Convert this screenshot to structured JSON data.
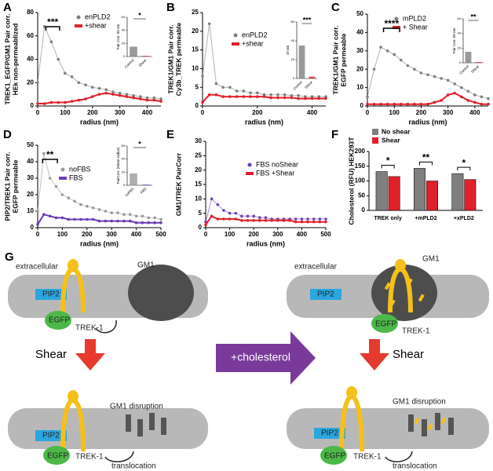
{
  "chart_data": [
    {
      "panel": "A",
      "type": "line",
      "ylabel": [
        "TREK1_EGFP/GM1  Pair corr.",
        "HEk  non-permeablized"
      ],
      "xlabel": "radius (nm)",
      "xlim": [
        0,
        450
      ],
      "xticks": [
        0,
        100,
        200,
        300,
        400
      ],
      "ylim": [
        0,
        80
      ],
      "yticks": [
        0,
        20,
        40,
        60,
        80
      ],
      "legend": "upper right",
      "annotation": "***",
      "x": [
        0,
        25,
        50,
        75,
        100,
        125,
        150,
        175,
        200,
        225,
        250,
        275,
        300,
        325,
        350,
        375,
        400,
        425,
        450
      ],
      "series": [
        {
          "name": "enPLD2",
          "color": "#7f7f7f",
          "values": [
            20,
            68,
            55,
            40,
            28,
            25,
            20,
            18,
            16,
            15,
            14,
            12,
            11,
            10,
            9,
            8,
            7,
            7,
            6
          ]
        },
        {
          "name": "+shear",
          "color": "#e0202a",
          "values": [
            2,
            2,
            3,
            3,
            3,
            4,
            5,
            6,
            8,
            10,
            11,
            10,
            9,
            8,
            7,
            6,
            5,
            5,
            4
          ]
        }
      ],
      "inset": {
        "type": "bar",
        "ylabel": "Pair Corr. 50 nm",
        "categories": [
          "Control",
          "Shear"
        ],
        "values": [
          15,
          1
        ],
        "colors": [
          "#7f7f7f",
          "#e0202a"
        ],
        "ylim": [
          0,
          60
        ],
        "yticks": [
          0,
          20,
          40,
          60
        ],
        "annotation": "*"
      }
    },
    {
      "panel": "B",
      "type": "line",
      "ylabel": [
        "TREK1/GM1  Pair corr.",
        "Cy3b_TREK permeable"
      ],
      "xlabel": "radius (nm)",
      "xlim": [
        0,
        450
      ],
      "xticks": [
        0,
        200,
        400
      ],
      "ylim": [
        0,
        25
      ],
      "yticks": [
        0,
        5,
        10,
        15,
        20,
        25
      ],
      "legend": "upper right",
      "x": [
        0,
        25,
        50,
        75,
        100,
        125,
        150,
        175,
        200,
        225,
        250,
        275,
        300,
        325,
        350,
        375,
        400,
        425,
        450
      ],
      "series": [
        {
          "name": "enPLD2",
          "color": "#7f7f7f",
          "values": [
            8,
            22,
            6,
            5,
            5,
            4,
            4,
            3.5,
            3.5,
            3,
            3,
            3,
            3,
            2.8,
            2.8,
            2.5,
            2.5,
            2.5,
            2.5
          ]
        },
        {
          "name": "+shear",
          "color": "#e0202a",
          "values": [
            1,
            3,
            3,
            2.5,
            2.5,
            2.5,
            2.5,
            2.5,
            2.5,
            2.5,
            2.2,
            2.2,
            2.2,
            2.2,
            2,
            2,
            2,
            2,
            2
          ]
        }
      ],
      "inset": {
        "type": "bar",
        "ylabel": "10 nm",
        "categories": [
          "Control",
          "Shear"
        ],
        "values": [
          35,
          2
        ],
        "colors": [
          "#7f7f7f",
          "#e0202a"
        ],
        "ylim": [
          0,
          60
        ],
        "yticks": [
          0,
          20,
          40,
          60
        ],
        "annotation": "***"
      }
    },
    {
      "panel": "C",
      "type": "line",
      "ylabel": [
        "TREK1/GM1 Pair corr.",
        "EGFP permeable"
      ],
      "xlabel": "radius (nm)",
      "xlim": [
        0,
        450
      ],
      "xticks": [
        0,
        100,
        200,
        300,
        400
      ],
      "ylim": [
        0,
        50
      ],
      "yticks": [
        0,
        10,
        20,
        30,
        40,
        50
      ],
      "legend": "upper right",
      "annotation": "****",
      "x": [
        0,
        25,
        50,
        75,
        100,
        125,
        150,
        175,
        200,
        225,
        250,
        275,
        300,
        325,
        350,
        375,
        400,
        425,
        450
      ],
      "series": [
        {
          "name": "mPLD2",
          "color": "#7f7f7f",
          "values": [
            5,
            20,
            32,
            30,
            28,
            25,
            22,
            20,
            18,
            17,
            16,
            15,
            14,
            12,
            10,
            8,
            6,
            5,
            4
          ]
        },
        {
          "name": "+ Shear",
          "color": "#e0202a",
          "values": [
            1,
            1,
            1,
            1,
            1,
            1,
            1,
            1,
            1,
            1,
            2,
            3,
            6,
            7,
            5,
            3,
            2,
            1,
            1
          ]
        }
      ],
      "inset": {
        "type": "bar",
        "ylabel": "Pair Corr. 50 nm",
        "categories": [
          "Control",
          "Shear"
        ],
        "values": [
          15,
          1
        ],
        "colors": [
          "#7f7f7f",
          "#e0202a"
        ],
        "ylim": [
          0,
          60
        ],
        "yticks": [
          0,
          20,
          40,
          60
        ],
        "annotation": "**"
      }
    },
    {
      "panel": "D",
      "type": "line",
      "ylabel": [
        "PIP2/TREK1 Pair corr.",
        "EGFP permeable"
      ],
      "xlabel": "radius (nm)",
      "xlim": [
        0,
        500
      ],
      "xticks": [
        0,
        100,
        200,
        300,
        400,
        500
      ],
      "ylim": [
        0,
        50
      ],
      "yticks": [
        0,
        10,
        20,
        30,
        40,
        50
      ],
      "legend": "center",
      "annotation": "**",
      "x": [
        0,
        25,
        50,
        75,
        100,
        125,
        150,
        175,
        200,
        225,
        250,
        275,
        300,
        325,
        350,
        375,
        400,
        425,
        450,
        475,
        500
      ],
      "series": [
        {
          "name": "noFBS",
          "color": "#9a9a9a",
          "values": [
            10,
            45,
            30,
            25,
            20,
            18,
            16,
            14,
            13,
            12,
            11,
            10,
            9,
            9,
            8,
            8,
            7,
            7,
            6,
            6,
            5
          ]
        },
        {
          "name": "FBS",
          "color": "#6a3db5",
          "values": [
            2,
            8,
            7,
            6,
            6,
            5,
            5,
            5,
            5,
            5,
            4,
            4,
            4,
            4,
            4,
            4,
            3,
            3,
            3,
            3,
            3
          ]
        }
      ],
      "inset": {
        "type": "bar",
        "ylabel": "PairCorr. (50nm radius)",
        "categories": [
          "noFBS",
          "FBS"
        ],
        "values": [
          18,
          1
        ],
        "colors": [
          "#9a9a9a",
          "#6a3db5"
        ],
        "ylim": [
          0,
          60
        ],
        "yticks": [
          0,
          20,
          40,
          60
        ],
        "annotation": "*"
      }
    },
    {
      "panel": "E",
      "type": "line",
      "ylabel": [
        "GM1/TREK PairCorr"
      ],
      "xlabel": "radius (nm)",
      "xlim": [
        0,
        500
      ],
      "xticks": [
        0,
        100,
        200,
        300,
        400,
        500
      ],
      "ylim": [
        0,
        30
      ],
      "yticks": [
        0,
        5,
        10,
        15,
        20,
        25,
        30
      ],
      "legend": "upper right",
      "x": [
        0,
        25,
        50,
        75,
        100,
        125,
        150,
        175,
        200,
        225,
        250,
        275,
        300,
        325,
        350,
        375,
        400,
        425,
        450,
        475,
        500
      ],
      "series": [
        {
          "name": "FBS noShear",
          "color": "#6a3db5",
          "values": [
            2,
            10,
            8,
            6,
            5,
            5,
            4,
            4,
            4,
            3.5,
            3.5,
            3,
            3,
            3,
            3,
            3,
            3,
            3,
            3,
            3,
            3
          ]
        },
        {
          "name": "FBS +Shear",
          "color": "#e0202a",
          "values": [
            1,
            4,
            3,
            3,
            3,
            3,
            2.5,
            2.5,
            2.5,
            2.5,
            2.5,
            2.5,
            2.5,
            2.5,
            2.5,
            2,
            2,
            2,
            2,
            2,
            2
          ]
        }
      ]
    },
    {
      "panel": "F",
      "type": "grouped_bar",
      "ylabel": [
        "Cholesterol (RFU)  HEK293T"
      ],
      "ylim": [
        0,
        200
      ],
      "yticks": [
        0,
        50,
        100,
        150,
        200
      ],
      "legend": "top",
      "categories": [
        "TREK only",
        "+mPLD2",
        "+xPLD2"
      ],
      "annotations": [
        "*",
        "**",
        "*"
      ],
      "series": [
        {
          "name": "No shear",
          "color": "#7f7f7f",
          "values": [
            132,
            143,
            125
          ]
        },
        {
          "name": "Shear",
          "color": "#e0202a",
          "values": [
            115,
            100,
            105
          ]
        }
      ]
    }
  ],
  "diagram": {
    "panel": "G",
    "treatment": "+cholesterol",
    "left_top": {
      "extracellular": "extracellular",
      "gm1": "GM1",
      "pip2": "PIP2",
      "egfp": "EGFP",
      "trek": "TREK-1"
    },
    "left_shear": "Shear",
    "left_bottom": {
      "disruption": "GM1 disruption",
      "pip2": "PIP2",
      "egfp": "EGFP",
      "trek": "TREK-1",
      "translocation": "translocation"
    },
    "right_top": {
      "extracellular": "extracellular",
      "gm1": "GM1",
      "pip2": "PIP2",
      "egfp": "EGFP",
      "trek": "TREK-1"
    },
    "right_shear": "Shear",
    "right_bottom": {
      "disruption": "GM1 disruption",
      "pip2": "PIP2",
      "egfp": "EGFP",
      "trek": "TREK-1",
      "translocation": "translocation"
    }
  }
}
